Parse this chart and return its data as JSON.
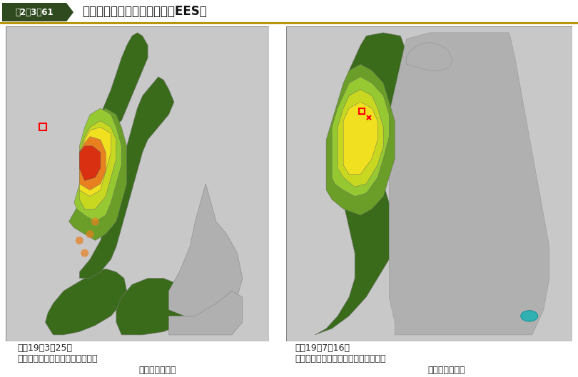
{
  "title_box_text": "図2－3－61",
  "title_text": "地震被害早期評価システム（EES）",
  "title_bar_color": "#b8960c",
  "title_box_bg": "#2e4a1e",
  "title_box_fg": "#ffffff",
  "bg_color": "#ffffff",
  "left_caption_line1": "平成19年3月25日",
  "left_caption_line2": "能登半島地震の推計震度分布結果",
  "left_caption_line3": "内阀府・気象庁",
  "right_caption_line1": "平成19年7月16日",
  "right_caption_line2": "新潟県中越沖地震の推計震度分布結果",
  "right_caption_line3": "内阀府・気象庁",
  "dark_green": "#3a6b1a",
  "medium_green": "#6a9e28",
  "light_green": "#96c832",
  "yellow_green": "#c8d820",
  "yellow": "#f0e020",
  "orange": "#e88020",
  "red_orange": "#d83010",
  "gray_land": "#b0b0b0",
  "gray_bg": "#c8c8c8",
  "sea_color": "#d8d8d8",
  "caption_fontsize": 9,
  "title_fontsize": 13
}
